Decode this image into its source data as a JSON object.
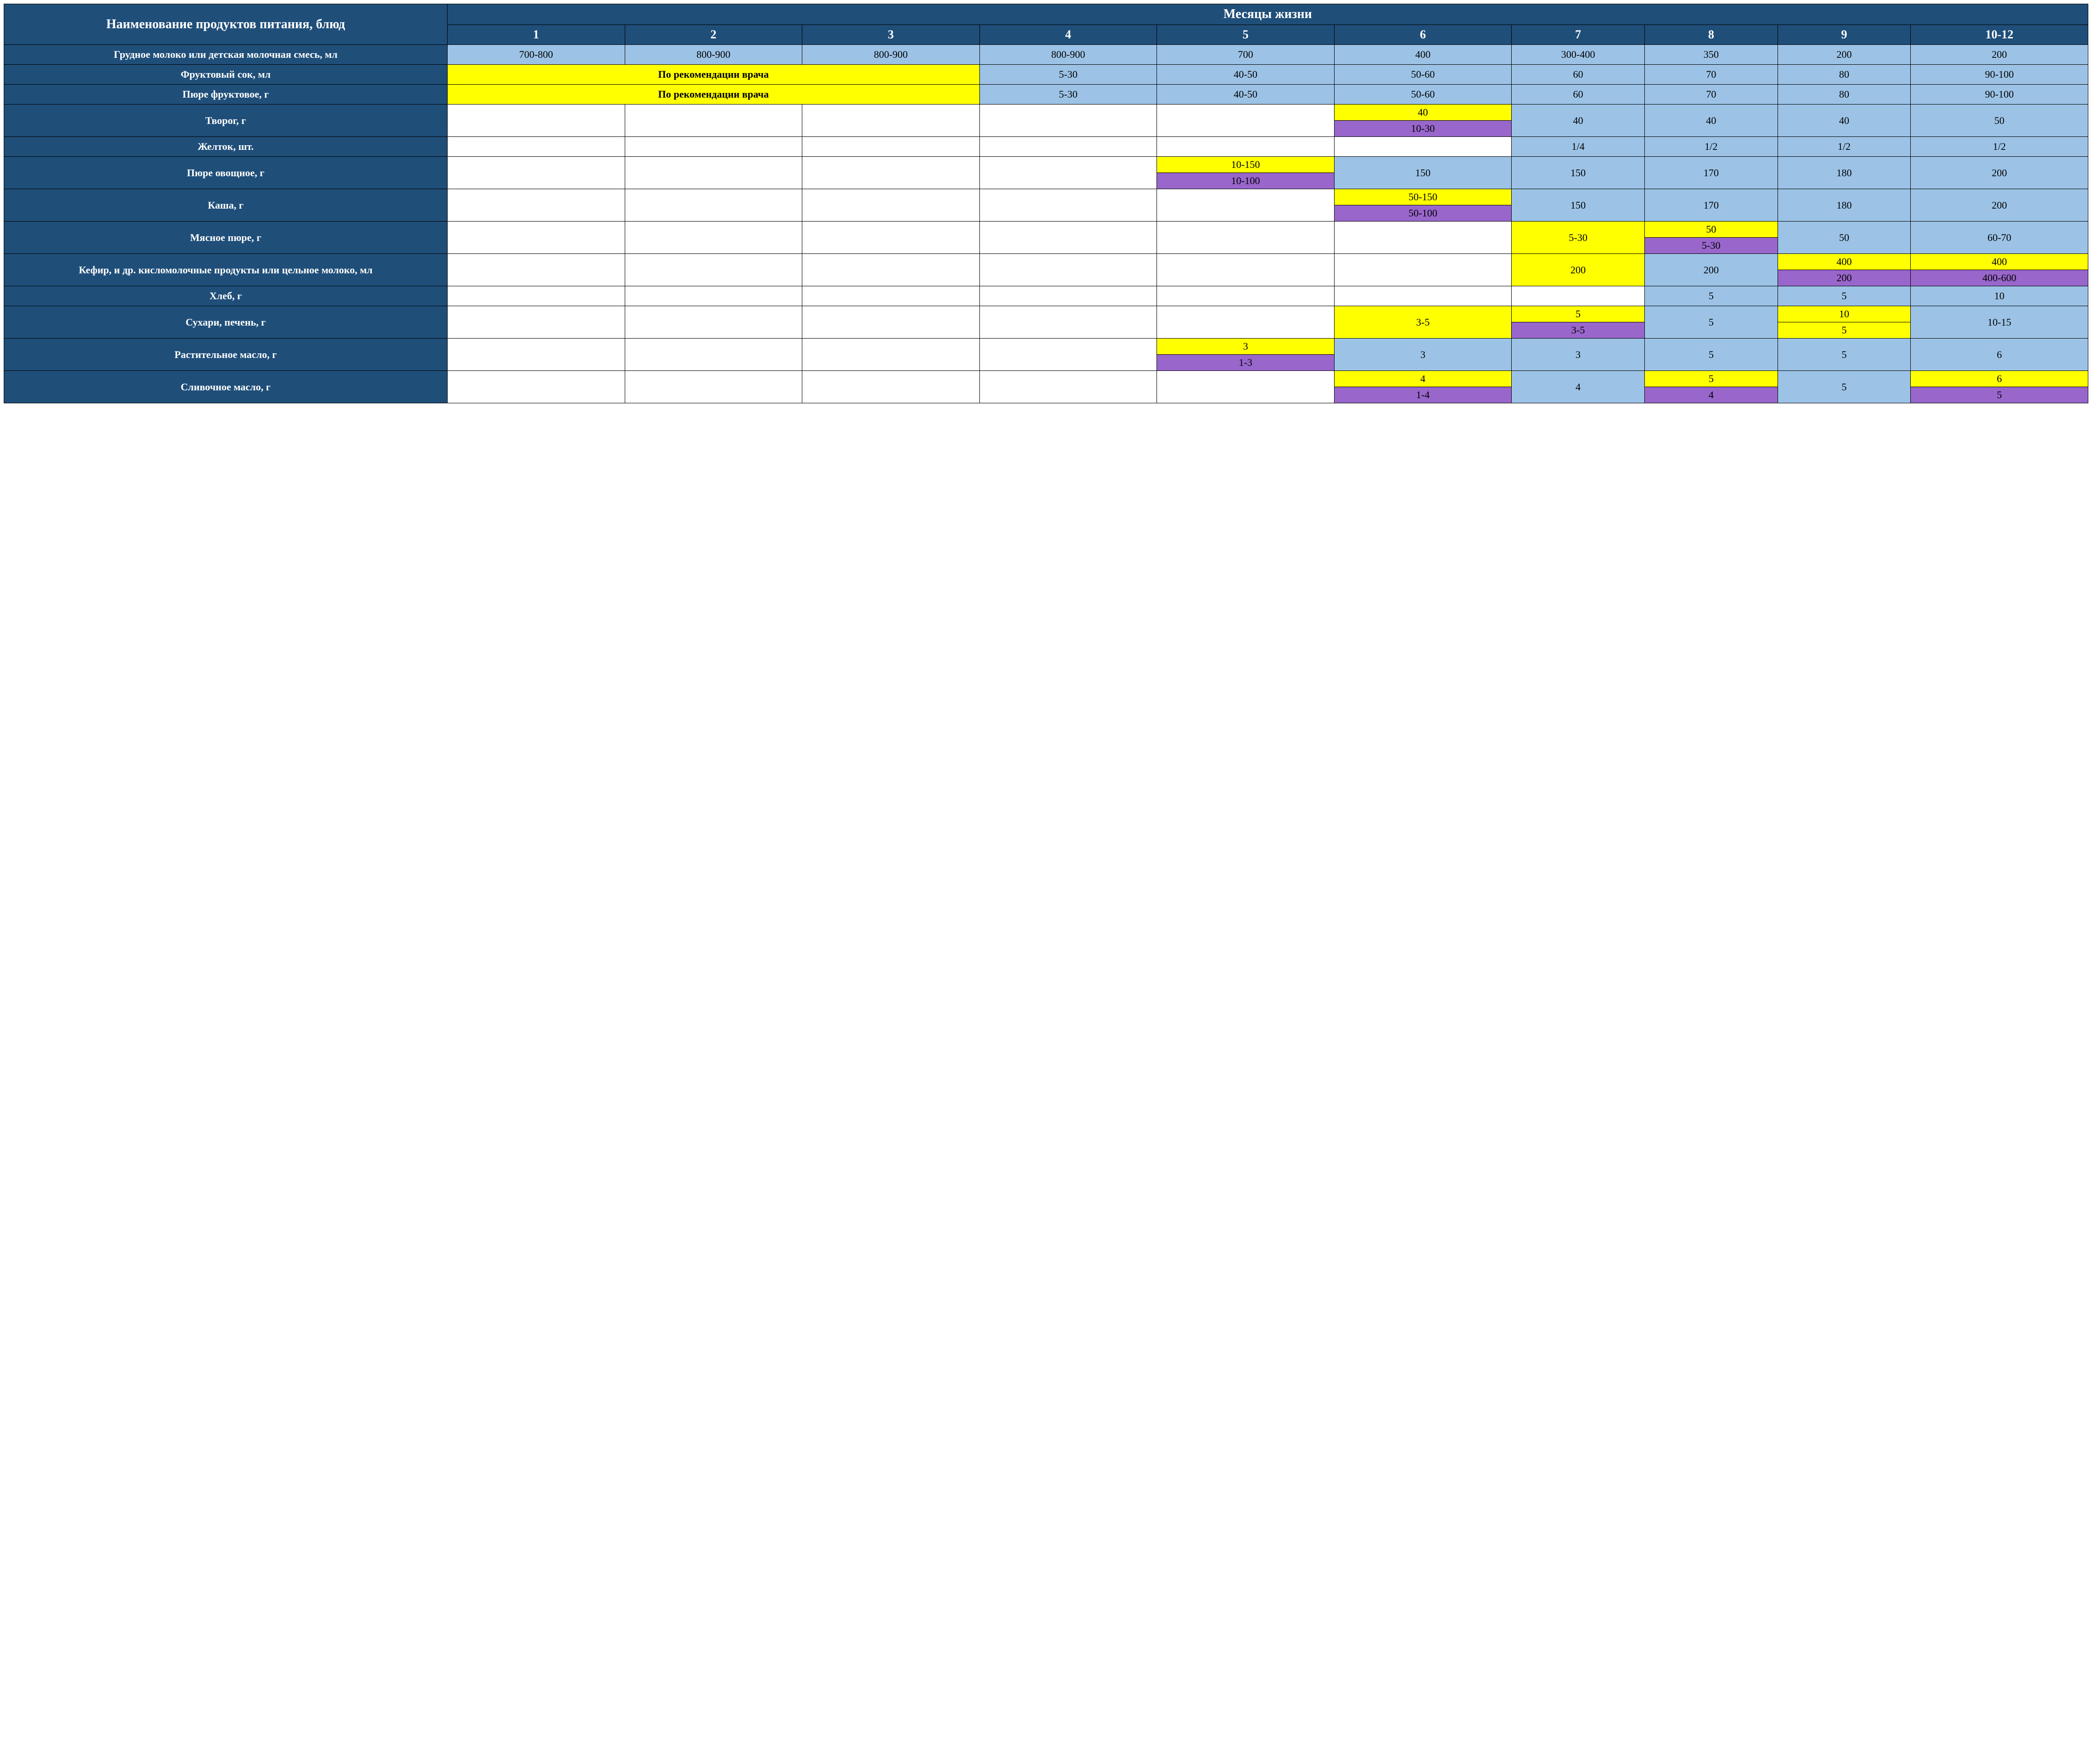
{
  "colors": {
    "header_bg": "#1f4e79",
    "header_fg": "#ffffff",
    "blue_bg": "#9cc3e6",
    "yellow_bg": "#ffff00",
    "purple_bg": "#9966cc",
    "white_bg": "#ffffff",
    "border": "#000000",
    "text": "#000000"
  },
  "typography": {
    "font_family": "Times New Roman",
    "header_fontsize_pt": 20,
    "body_fontsize_pt": 16,
    "header_bold": true,
    "rowheader_bold": true
  },
  "header": {
    "corner": "Наименование продуктов питания, блюд",
    "group": "Месяцы жизни",
    "months": [
      "1",
      "2",
      "3",
      "4",
      "5",
      "6",
      "7",
      "8",
      "9",
      "10-12"
    ]
  },
  "rows": [
    {
      "label": "Грудное молоко или детская молочная смесь, мл",
      "cells": [
        {
          "span": 1,
          "style": "blue",
          "value": "700-800"
        },
        {
          "span": 1,
          "style": "blue",
          "value": "800-900"
        },
        {
          "span": 1,
          "style": "blue",
          "value": "800-900"
        },
        {
          "span": 1,
          "style": "blue",
          "value": "800-900"
        },
        {
          "span": 1,
          "style": "blue",
          "value": "700"
        },
        {
          "span": 1,
          "style": "blue",
          "value": "400"
        },
        {
          "span": 1,
          "style": "blue",
          "value": "300-400"
        },
        {
          "span": 1,
          "style": "blue",
          "value": "350"
        },
        {
          "span": 1,
          "style": "blue",
          "value": "200"
        },
        {
          "span": 1,
          "style": "blue",
          "value": "200"
        }
      ]
    },
    {
      "label": "Фруктовый сок, мл",
      "cells": [
        {
          "span": 3,
          "style": "yellow",
          "bold": true,
          "value": "По рекомендации врача"
        },
        {
          "span": 1,
          "style": "blue",
          "value": "5-30"
        },
        {
          "span": 1,
          "style": "blue",
          "value": "40-50"
        },
        {
          "span": 1,
          "style": "blue",
          "value": "50-60"
        },
        {
          "span": 1,
          "style": "blue",
          "value": "60"
        },
        {
          "span": 1,
          "style": "blue",
          "value": "70"
        },
        {
          "span": 1,
          "style": "blue",
          "value": "80"
        },
        {
          "span": 1,
          "style": "blue",
          "value": "90-100"
        }
      ]
    },
    {
      "label": "Пюре фруктовое, г",
      "cells": [
        {
          "span": 3,
          "style": "yellow",
          "bold": true,
          "value": "По рекомендации врача"
        },
        {
          "span": 1,
          "style": "blue",
          "value": "5-30"
        },
        {
          "span": 1,
          "style": "blue",
          "value": "40-50"
        },
        {
          "span": 1,
          "style": "blue",
          "value": "50-60"
        },
        {
          "span": 1,
          "style": "blue",
          "value": "60"
        },
        {
          "span": 1,
          "style": "blue",
          "value": "70"
        },
        {
          "span": 1,
          "style": "blue",
          "value": "80"
        },
        {
          "span": 1,
          "style": "blue",
          "value": "90-100"
        }
      ]
    },
    {
      "label": "Творог, г",
      "cells": [
        {
          "span": 1,
          "style": "white",
          "value": ""
        },
        {
          "span": 1,
          "style": "white",
          "value": ""
        },
        {
          "span": 1,
          "style": "white",
          "value": ""
        },
        {
          "span": 1,
          "style": "white",
          "value": ""
        },
        {
          "span": 1,
          "style": "white",
          "value": ""
        },
        {
          "span": 1,
          "split": [
            {
              "style": "yellow",
              "value": "40"
            },
            {
              "style": "purple",
              "value": "10-30"
            }
          ]
        },
        {
          "span": 1,
          "style": "blue",
          "value": "40"
        },
        {
          "span": 1,
          "style": "blue",
          "value": "40"
        },
        {
          "span": 1,
          "style": "blue",
          "value": "40"
        },
        {
          "span": 1,
          "style": "blue",
          "value": "50"
        }
      ]
    },
    {
      "label": "Желток, шт.",
      "cells": [
        {
          "span": 1,
          "style": "white",
          "value": ""
        },
        {
          "span": 1,
          "style": "white",
          "value": ""
        },
        {
          "span": 1,
          "style": "white",
          "value": ""
        },
        {
          "span": 1,
          "style": "white",
          "value": ""
        },
        {
          "span": 1,
          "style": "white",
          "value": ""
        },
        {
          "span": 1,
          "style": "white",
          "value": ""
        },
        {
          "span": 1,
          "style": "blue",
          "value": "1/4"
        },
        {
          "span": 1,
          "style": "blue",
          "value": "1/2"
        },
        {
          "span": 1,
          "style": "blue",
          "value": "1/2"
        },
        {
          "span": 1,
          "style": "blue",
          "value": "1/2"
        }
      ]
    },
    {
      "label": "Пюре овощное, г",
      "cells": [
        {
          "span": 1,
          "style": "white",
          "value": ""
        },
        {
          "span": 1,
          "style": "white",
          "value": ""
        },
        {
          "span": 1,
          "style": "white",
          "value": ""
        },
        {
          "span": 1,
          "style": "white",
          "value": ""
        },
        {
          "span": 1,
          "split": [
            {
              "style": "yellow",
              "value": "10-150"
            },
            {
              "style": "purple",
              "value": "10-100"
            }
          ]
        },
        {
          "span": 1,
          "style": "blue",
          "value": "150"
        },
        {
          "span": 1,
          "style": "blue",
          "value": "150"
        },
        {
          "span": 1,
          "style": "blue",
          "value": "170"
        },
        {
          "span": 1,
          "style": "blue",
          "value": "180"
        },
        {
          "span": 1,
          "style": "blue",
          "value": "200"
        }
      ]
    },
    {
      "label": "Каша, г",
      "cells": [
        {
          "span": 1,
          "style": "white",
          "value": ""
        },
        {
          "span": 1,
          "style": "white",
          "value": ""
        },
        {
          "span": 1,
          "style": "white",
          "value": ""
        },
        {
          "span": 1,
          "style": "white",
          "value": ""
        },
        {
          "span": 1,
          "style": "white",
          "value": ""
        },
        {
          "span": 1,
          "split": [
            {
              "style": "yellow",
              "value": "50-150"
            },
            {
              "style": "purple",
              "value": "50-100"
            }
          ]
        },
        {
          "span": 1,
          "style": "blue",
          "value": "150"
        },
        {
          "span": 1,
          "style": "blue",
          "value": "170"
        },
        {
          "span": 1,
          "style": "blue",
          "value": "180"
        },
        {
          "span": 1,
          "style": "blue",
          "value": "200"
        }
      ]
    },
    {
      "label": "Мясное пюре, г",
      "cells": [
        {
          "span": 1,
          "style": "white",
          "value": ""
        },
        {
          "span": 1,
          "style": "white",
          "value": ""
        },
        {
          "span": 1,
          "style": "white",
          "value": ""
        },
        {
          "span": 1,
          "style": "white",
          "value": ""
        },
        {
          "span": 1,
          "style": "white",
          "value": ""
        },
        {
          "span": 1,
          "style": "white",
          "value": ""
        },
        {
          "span": 1,
          "style": "yellow",
          "value": "5-30"
        },
        {
          "span": 1,
          "split": [
            {
              "style": "yellow",
              "value": "50"
            },
            {
              "style": "purple",
              "value": "5-30"
            }
          ]
        },
        {
          "span": 1,
          "style": "blue",
          "value": "50"
        },
        {
          "span": 1,
          "style": "blue",
          "value": "60-70"
        }
      ]
    },
    {
      "label": "Кефир, и др. кисломолочные продукты или цельное молоко, мл",
      "cells": [
        {
          "span": 1,
          "style": "white",
          "value": ""
        },
        {
          "span": 1,
          "style": "white",
          "value": ""
        },
        {
          "span": 1,
          "style": "white",
          "value": ""
        },
        {
          "span": 1,
          "style": "white",
          "value": ""
        },
        {
          "span": 1,
          "style": "white",
          "value": ""
        },
        {
          "span": 1,
          "style": "white",
          "value": ""
        },
        {
          "span": 1,
          "style": "yellow",
          "value": "200"
        },
        {
          "span": 1,
          "style": "blue",
          "value": "200"
        },
        {
          "span": 1,
          "split": [
            {
              "style": "yellow",
              "value": "400"
            },
            {
              "style": "purple",
              "value": "200"
            }
          ]
        },
        {
          "span": 1,
          "split": [
            {
              "style": "yellow",
              "value": "400"
            },
            {
              "style": "purple",
              "value": "400-600"
            }
          ]
        }
      ]
    },
    {
      "label": "Хлеб, г",
      "cells": [
        {
          "span": 1,
          "style": "white",
          "value": ""
        },
        {
          "span": 1,
          "style": "white",
          "value": ""
        },
        {
          "span": 1,
          "style": "white",
          "value": ""
        },
        {
          "span": 1,
          "style": "white",
          "value": ""
        },
        {
          "span": 1,
          "style": "white",
          "value": ""
        },
        {
          "span": 1,
          "style": "white",
          "value": ""
        },
        {
          "span": 1,
          "style": "white",
          "value": ""
        },
        {
          "span": 1,
          "style": "blue",
          "value": "5"
        },
        {
          "span": 1,
          "style": "blue",
          "value": "5"
        },
        {
          "span": 1,
          "style": "blue",
          "value": "10"
        }
      ]
    },
    {
      "label": "Сухари, печень, г",
      "cells": [
        {
          "span": 1,
          "style": "white",
          "value": ""
        },
        {
          "span": 1,
          "style": "white",
          "value": ""
        },
        {
          "span": 1,
          "style": "white",
          "value": ""
        },
        {
          "span": 1,
          "style": "white",
          "value": ""
        },
        {
          "span": 1,
          "style": "white",
          "value": ""
        },
        {
          "span": 1,
          "style": "yellow",
          "value": "3-5"
        },
        {
          "span": 1,
          "split": [
            {
              "style": "yellow",
              "value": "5"
            },
            {
              "style": "purple",
              "value": "3-5"
            }
          ]
        },
        {
          "span": 1,
          "style": "blue",
          "value": "5"
        },
        {
          "span": 1,
          "split": [
            {
              "style": "yellow",
              "value": "10"
            },
            {
              "style": "yellow",
              "value": "5"
            }
          ]
        },
        {
          "span": 1,
          "style": "blue",
          "value": "10-15"
        }
      ]
    },
    {
      "label": "Растительное масло, г",
      "cells": [
        {
          "span": 1,
          "style": "white",
          "value": ""
        },
        {
          "span": 1,
          "style": "white",
          "value": ""
        },
        {
          "span": 1,
          "style": "white",
          "value": ""
        },
        {
          "span": 1,
          "style": "white",
          "value": ""
        },
        {
          "span": 1,
          "split": [
            {
              "style": "yellow",
              "value": "3"
            },
            {
              "style": "purple",
              "value": "1-3"
            }
          ]
        },
        {
          "span": 1,
          "style": "blue",
          "value": "3"
        },
        {
          "span": 1,
          "style": "blue",
          "value": "3"
        },
        {
          "span": 1,
          "style": "blue",
          "value": "5"
        },
        {
          "span": 1,
          "style": "blue",
          "value": "5"
        },
        {
          "span": 1,
          "style": "blue",
          "value": "6"
        }
      ]
    },
    {
      "label": "Сливочное масло, г",
      "cells": [
        {
          "span": 1,
          "style": "white",
          "value": ""
        },
        {
          "span": 1,
          "style": "white",
          "value": ""
        },
        {
          "span": 1,
          "style": "white",
          "value": ""
        },
        {
          "span": 1,
          "style": "white",
          "value": ""
        },
        {
          "span": 1,
          "style": "white",
          "value": ""
        },
        {
          "span": 1,
          "split": [
            {
              "style": "yellow",
              "value": "4"
            },
            {
              "style": "purple",
              "value": "1-4"
            }
          ]
        },
        {
          "span": 1,
          "style": "blue",
          "value": "4"
        },
        {
          "span": 1,
          "split": [
            {
              "style": "yellow",
              "value": "5"
            },
            {
              "style": "purple",
              "value": "4"
            }
          ]
        },
        {
          "span": 1,
          "style": "blue",
          "value": "5"
        },
        {
          "span": 1,
          "split": [
            {
              "style": "yellow",
              "value": "6"
            },
            {
              "style": "purple",
              "value": "5"
            }
          ]
        }
      ]
    }
  ]
}
